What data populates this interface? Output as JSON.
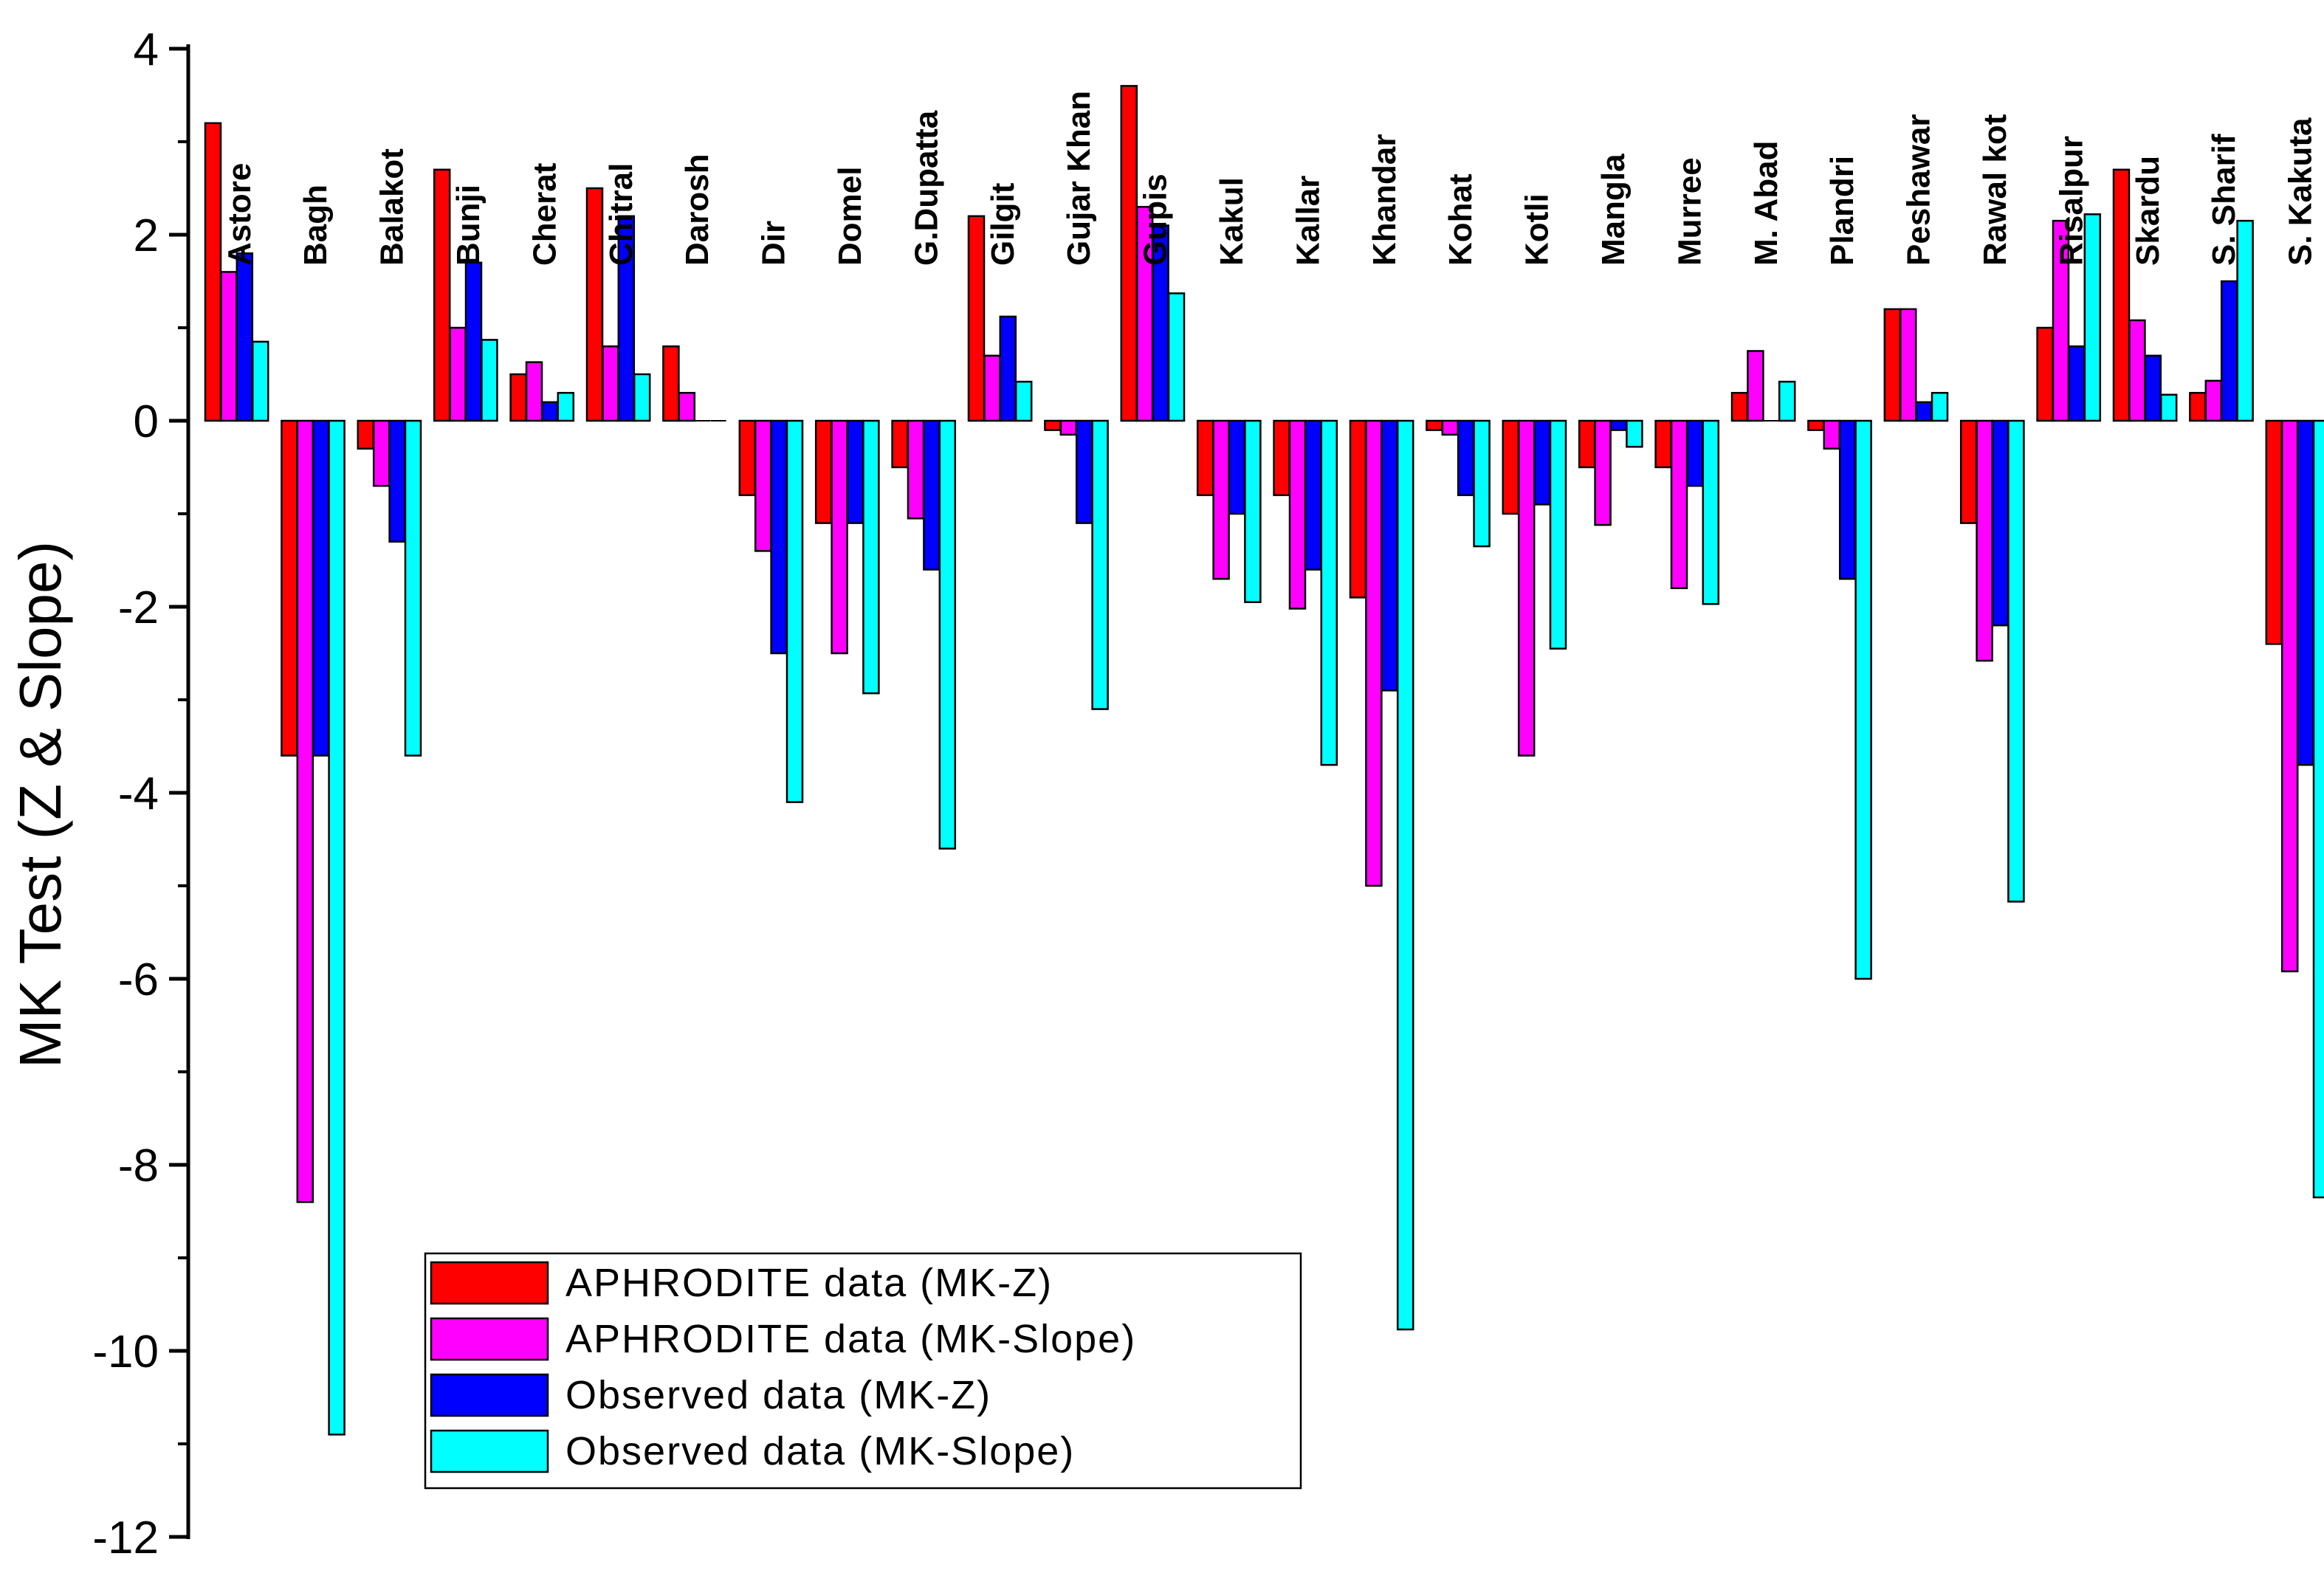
{
  "chart_data": {
    "type": "bar",
    "title": "",
    "xlabel": "",
    "ylabel": "MK Test (Z & Slope)",
    "ylim": [
      -12,
      4
    ],
    "yticks": [
      4,
      2,
      0,
      -2,
      -4,
      -6,
      -8,
      -10,
      -12
    ],
    "ytick_labels": [
      "4",
      "2",
      "0",
      "-2",
      "-4",
      "-6",
      "-8",
      "-10",
      "-12"
    ],
    "grid": false,
    "legend_position": "bottom-left",
    "categories": [
      "Astore",
      "Bagh",
      "Balakot",
      "Bunji",
      "Cherat",
      "Chitral",
      "Darosh",
      "Dir",
      "Domel",
      "G.Dupatta",
      "Gilgit",
      "Gujar Khan",
      "Gupis",
      "Kakul",
      "Kallar",
      "Khandar",
      "Kohat",
      "Kotli",
      "Mangla",
      "Murree",
      "M. Abad",
      "Plandri",
      "Peshawar",
      "Rawal kot",
      "Risalpur",
      "Skardu",
      "S. Sharif",
      "S. Kakuta"
    ],
    "series": [
      {
        "name": "APHRODITE data (MK-Z)",
        "color": "#ff0000",
        "values": [
          3.2,
          -3.6,
          -0.3,
          2.7,
          0.5,
          2.5,
          0.8,
          -0.8,
          -1.1,
          -0.5,
          2.2,
          -0.1,
          3.6,
          -0.8,
          -0.8,
          -1.9,
          -0.1,
          -1.0,
          -0.5,
          -0.5,
          0.3,
          -0.1,
          1.2,
          -1.1,
          1.0,
          2.7,
          0.3,
          -2.4
        ]
      },
      {
        "name": "APHRODITE data (MK-Slope)",
        "color": "#ff00ff",
        "values": [
          1.6,
          -8.4,
          -0.7,
          1.0,
          0.63,
          0.8,
          0.3,
          -1.4,
          -2.5,
          -1.05,
          0.7,
          -0.15,
          2.3,
          -1.7,
          -2.02,
          -5.0,
          -0.15,
          -3.6,
          -1.12,
          -1.8,
          0.75,
          -0.3,
          1.2,
          -2.58,
          2.15,
          1.08,
          0.43,
          -5.92
        ]
      },
      {
        "name": "Observed data (MK-Z)",
        "color": "#0000ff",
        "values": [
          1.8,
          -3.6,
          -1.3,
          1.7,
          0.2,
          2.2,
          0.0,
          -2.5,
          -1.1,
          -1.6,
          1.12,
          -1.1,
          2.1,
          -1.0,
          -1.6,
          -2.9,
          -0.8,
          -0.9,
          -0.1,
          -0.7,
          0.0,
          -1.7,
          0.2,
          -2.2,
          0.8,
          0.7,
          1.5,
          -3.7
        ]
      },
      {
        "name": "Observed data (MK-Slope)",
        "color": "#00ffff",
        "values": [
          0.85,
          -10.9,
          -3.6,
          0.87,
          0.3,
          0.5,
          0.0,
          -4.1,
          -2.93,
          -4.6,
          0.42,
          -3.1,
          1.37,
          -1.95,
          -3.7,
          -9.77,
          -1.35,
          -2.45,
          -0.28,
          -1.97,
          0.42,
          -6.0,
          0.3,
          -5.17,
          2.22,
          0.28,
          2.15,
          -8.35
        ]
      }
    ]
  }
}
